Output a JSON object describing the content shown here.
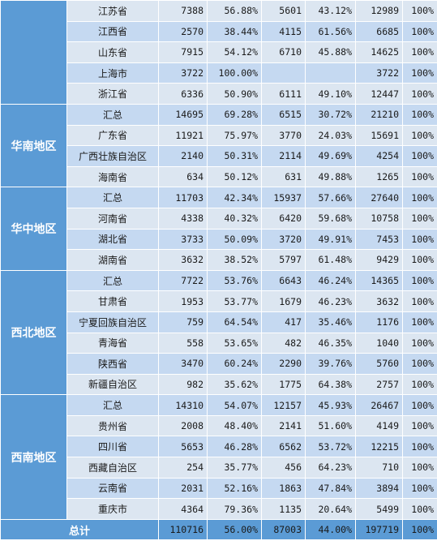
{
  "colors": {
    "region_bg": "#5b9bd5",
    "row_light": "#dce6f1",
    "row_dark": "#c5d9f1"
  },
  "groups": [
    {
      "region": "",
      "rows": [
        [
          "江苏省",
          "7388",
          "56.88%",
          "5601",
          "43.12%",
          "12989",
          "100%"
        ],
        [
          "江西省",
          "2570",
          "38.44%",
          "4115",
          "61.56%",
          "6685",
          "100%"
        ],
        [
          "山东省",
          "7915",
          "54.12%",
          "6710",
          "45.88%",
          "14625",
          "100%"
        ],
        [
          "上海市",
          "3722",
          "100.00%",
          "",
          "",
          "3722",
          "100%"
        ],
        [
          "浙江省",
          "6336",
          "50.90%",
          "6111",
          "49.10%",
          "12447",
          "100%"
        ]
      ]
    },
    {
      "region": "华南地区",
      "rows": [
        [
          "汇总",
          "14695",
          "69.28%",
          "6515",
          "30.72%",
          "21210",
          "100%"
        ],
        [
          "广东省",
          "11921",
          "75.97%",
          "3770",
          "24.03%",
          "15691",
          "100%"
        ],
        [
          "广西壮族自治区",
          "2140",
          "50.31%",
          "2114",
          "49.69%",
          "4254",
          "100%"
        ],
        [
          "海南省",
          "634",
          "50.12%",
          "631",
          "49.88%",
          "1265",
          "100%"
        ]
      ]
    },
    {
      "region": "华中地区",
      "rows": [
        [
          "汇总",
          "11703",
          "42.34%",
          "15937",
          "57.66%",
          "27640",
          "100%"
        ],
        [
          "河南省",
          "4338",
          "40.32%",
          "6420",
          "59.68%",
          "10758",
          "100%"
        ],
        [
          "湖北省",
          "3733",
          "50.09%",
          "3720",
          "49.91%",
          "7453",
          "100%"
        ],
        [
          "湖南省",
          "3632",
          "38.52%",
          "5797",
          "61.48%",
          "9429",
          "100%"
        ]
      ]
    },
    {
      "region": "西北地区",
      "rows": [
        [
          "汇总",
          "7722",
          "53.76%",
          "6643",
          "46.24%",
          "14365",
          "100%"
        ],
        [
          "甘肃省",
          "1953",
          "53.77%",
          "1679",
          "46.23%",
          "3632",
          "100%"
        ],
        [
          "宁夏回族自治区",
          "759",
          "64.54%",
          "417",
          "35.46%",
          "1176",
          "100%"
        ],
        [
          "青海省",
          "558",
          "53.65%",
          "482",
          "46.35%",
          "1040",
          "100%"
        ],
        [
          "陕西省",
          "3470",
          "60.24%",
          "2290",
          "39.76%",
          "5760",
          "100%"
        ],
        [
          "新疆自治区",
          "982",
          "35.62%",
          "1775",
          "64.38%",
          "2757",
          "100%"
        ]
      ]
    },
    {
      "region": "西南地区",
      "rows": [
        [
          "汇总",
          "14310",
          "54.07%",
          "12157",
          "45.93%",
          "26467",
          "100%"
        ],
        [
          "贵州省",
          "2008",
          "48.40%",
          "2141",
          "51.60%",
          "4149",
          "100%"
        ],
        [
          "四川省",
          "5653",
          "46.28%",
          "6562",
          "53.72%",
          "12215",
          "100%"
        ],
        [
          "西藏自治区",
          "254",
          "35.77%",
          "456",
          "64.23%",
          "710",
          "100%"
        ],
        [
          "云南省",
          "2031",
          "52.16%",
          "1863",
          "47.84%",
          "3894",
          "100%"
        ],
        [
          "重庆市",
          "4364",
          "79.36%",
          "1135",
          "20.64%",
          "5499",
          "100%"
        ]
      ]
    }
  ],
  "total": {
    "label": "总计",
    "values": [
      "110716",
      "56.00%",
      "87003",
      "44.00%",
      "197719",
      "100%"
    ]
  }
}
